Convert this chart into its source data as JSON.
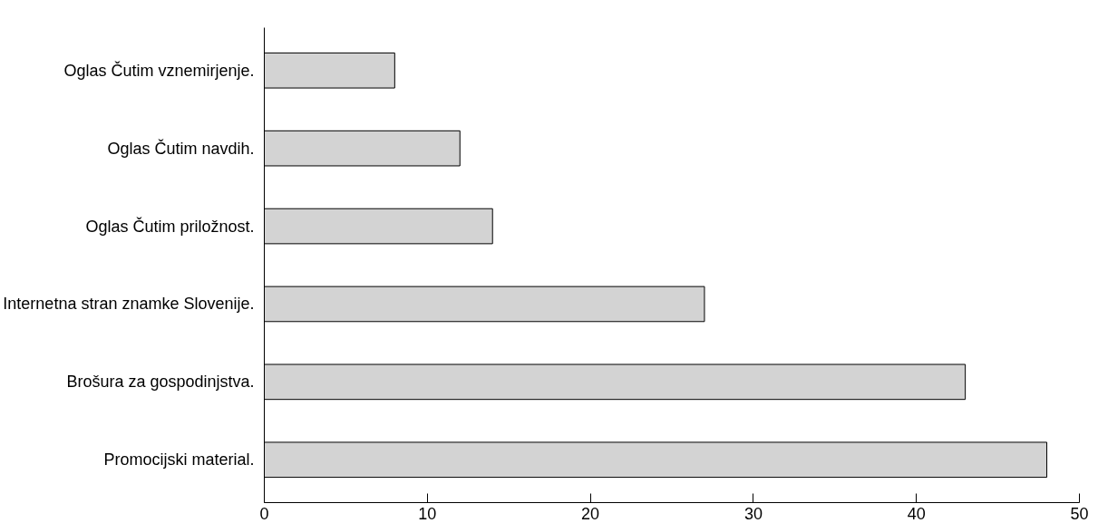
{
  "chart_data": {
    "type": "bar",
    "orientation": "horizontal",
    "categories": [
      "Oglas Čutim vznemirjenje.",
      "Oglas Čutim navdih.",
      "Oglas Čutim priložnost.",
      "Internetna stran znamke Slovenije.",
      "Brošura za gospodinjstva.",
      "Promocijski material."
    ],
    "values": [
      8,
      12,
      14,
      27,
      43,
      48
    ],
    "color": "#d3d3d3",
    "xlim": [
      0,
      50
    ],
    "xticks": [
      0,
      10,
      20,
      30,
      40,
      50
    ],
    "grid": false
  }
}
